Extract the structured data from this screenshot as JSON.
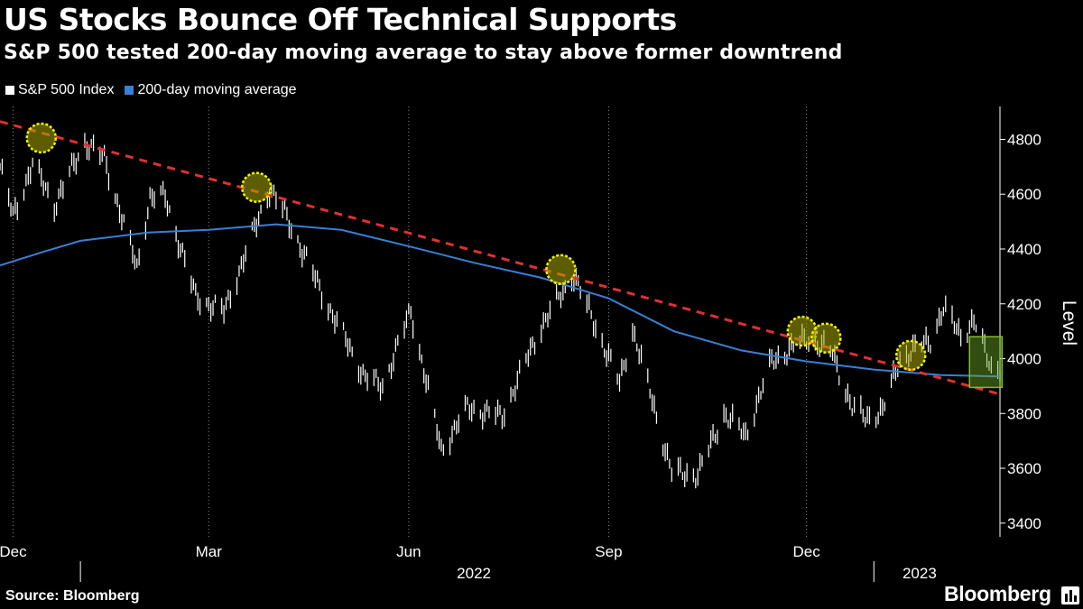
{
  "header": {
    "title": "US Stocks Bounce Off Technical Supports",
    "subtitle": "S&P 500 tested 200-day moving average to stay above former downtrend"
  },
  "legend": {
    "items": [
      {
        "label": "S&P 500 Index",
        "color": "#ffffff"
      },
      {
        "label": "200-day moving average",
        "color": "#3a7fd5"
      }
    ]
  },
  "footer": {
    "source": "Source: Bloomberg",
    "brand": "Bloomberg",
    "brand_icon": "bar-chart-icon"
  },
  "chart_data": {
    "type": "line",
    "ylabel": "Level",
    "ylim": [
      3350,
      4920
    ],
    "y_ticks": [
      3400,
      3600,
      3800,
      4000,
      4200,
      4400,
      4600,
      4800
    ],
    "x_range": [
      "2021-11-25",
      "2023-02-28"
    ],
    "month_ticks": [
      {
        "label": "Dec",
        "date": "2021-12-01"
      },
      {
        "label": "Mar",
        "date": "2022-03-01"
      },
      {
        "label": "Jun",
        "date": "2022-06-01"
      },
      {
        "label": "Sep",
        "date": "2022-09-01"
      },
      {
        "label": "Dec",
        "date": "2022-12-01"
      }
    ],
    "year_labels": [
      {
        "label": "2022",
        "date": "2022-07-01"
      },
      {
        "label": "2023",
        "date": "2023-01-22"
      }
    ],
    "year_dividers": [
      "2022-01-01",
      "2023-01-01"
    ],
    "grid": "vertical dotted",
    "series": [
      {
        "name": "S&P 500 Index",
        "color": "#ffffff",
        "points": [
          [
            "2021-11-25",
            4700
          ],
          [
            "2021-12-01",
            4520
          ],
          [
            "2021-12-10",
            4710
          ],
          [
            "2021-12-20",
            4560
          ],
          [
            "2022-01-03",
            4790
          ],
          [
            "2022-01-12",
            4730
          ],
          [
            "2022-01-27",
            4330
          ],
          [
            "2022-02-02",
            4590
          ],
          [
            "2022-02-09",
            4590
          ],
          [
            "2022-02-23",
            4225
          ],
          [
            "2022-03-08",
            4170
          ],
          [
            "2022-03-29",
            4620
          ],
          [
            "2022-04-05",
            4530
          ],
          [
            "2022-04-26",
            4175
          ],
          [
            "2022-05-12",
            3930
          ],
          [
            "2022-05-20",
            3900
          ],
          [
            "2022-06-02",
            4175
          ],
          [
            "2022-06-16",
            3666
          ],
          [
            "2022-06-28",
            3820
          ],
          [
            "2022-07-14",
            3790
          ],
          [
            "2022-08-01",
            4120
          ],
          [
            "2022-08-16",
            4305
          ],
          [
            "2022-09-06",
            3910
          ],
          [
            "2022-09-12",
            4110
          ],
          [
            "2022-09-30",
            3585
          ],
          [
            "2022-10-12",
            3577
          ],
          [
            "2022-10-24",
            3800
          ],
          [
            "2022-11-03",
            3720
          ],
          [
            "2022-11-15",
            3990
          ],
          [
            "2022-12-01",
            4075
          ],
          [
            "2022-12-13",
            4020
          ],
          [
            "2022-12-22",
            3820
          ],
          [
            "2022-12-28",
            3785
          ],
          [
            "2023-01-05",
            3810
          ],
          [
            "2023-01-13",
            3999
          ],
          [
            "2023-01-27",
            4070
          ],
          [
            "2023-02-02",
            4180
          ],
          [
            "2023-02-10",
            4090
          ],
          [
            "2023-02-16",
            4135
          ],
          [
            "2023-02-24",
            3970
          ],
          [
            "2023-02-28",
            3970
          ]
        ]
      },
      {
        "name": "200-day moving average",
        "color": "#3a7fd5",
        "points": [
          [
            "2021-11-25",
            4340
          ],
          [
            "2021-12-15",
            4390
          ],
          [
            "2022-01-01",
            4430
          ],
          [
            "2022-02-01",
            4460
          ],
          [
            "2022-03-01",
            4470
          ],
          [
            "2022-04-01",
            4490
          ],
          [
            "2022-05-01",
            4470
          ],
          [
            "2022-06-01",
            4410
          ],
          [
            "2022-07-01",
            4350
          ],
          [
            "2022-08-01",
            4295
          ],
          [
            "2022-09-01",
            4220
          ],
          [
            "2022-10-01",
            4100
          ],
          [
            "2022-11-01",
            4030
          ],
          [
            "2022-12-01",
            3990
          ],
          [
            "2023-01-01",
            3960
          ],
          [
            "2023-02-01",
            3940
          ],
          [
            "2023-02-28",
            3935
          ]
        ]
      },
      {
        "type": "trendline",
        "color": "#e03030",
        "points": [
          [
            "2021-11-25",
            4865
          ],
          [
            "2023-02-28",
            3870
          ]
        ]
      }
    ],
    "annotations": {
      "touch_markers": [
        {
          "date": "2021-12-14",
          "value": 4805
        },
        {
          "date": "2022-03-23",
          "value": 4625
        },
        {
          "date": "2022-08-10",
          "value": 4325
        },
        {
          "date": "2022-11-29",
          "value": 4100
        },
        {
          "date": "2022-12-10",
          "value": 4075
        },
        {
          "date": "2023-01-18",
          "value": 4012
        }
      ],
      "highlight_box": {
        "x_range": [
          "2023-02-14",
          "2023-03-01"
        ],
        "y_range": [
          3895,
          4080
        ],
        "color": "#7fbf2e"
      }
    }
  }
}
